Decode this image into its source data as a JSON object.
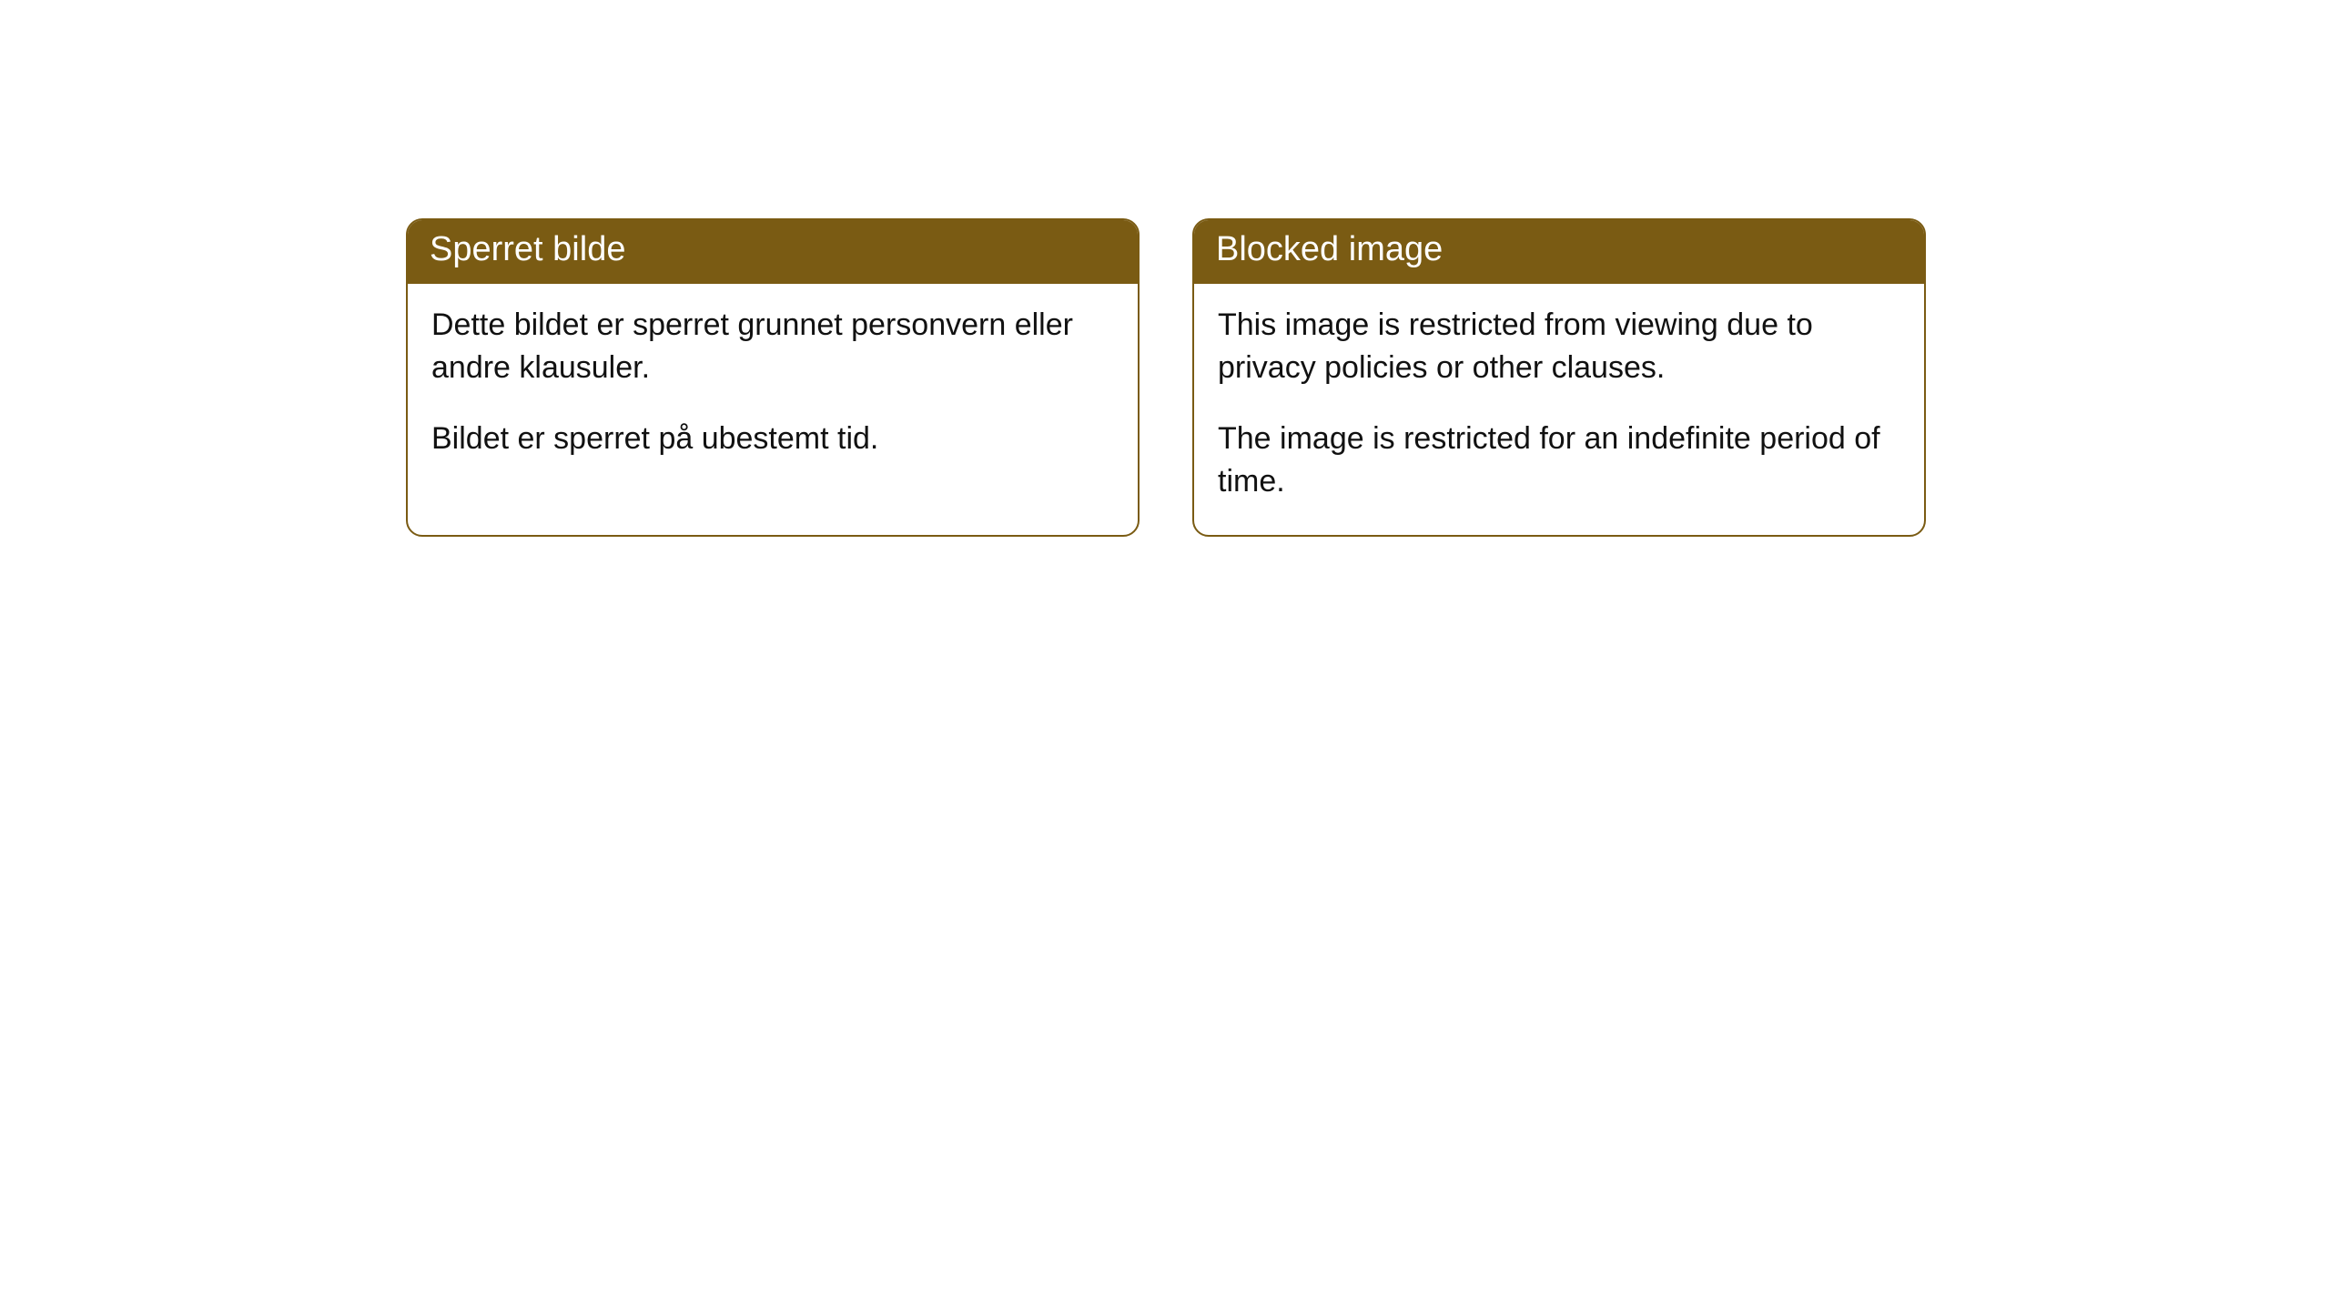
{
  "cards": [
    {
      "title": "Sperret bilde",
      "paragraph1": "Dette bildet er sperret grunnet personvern eller andre klausuler.",
      "paragraph2": "Bildet er sperret på ubestemt tid."
    },
    {
      "title": "Blocked image",
      "paragraph1": "This image is restricted from viewing due to privacy policies or other clauses.",
      "paragraph2": "The image is restricted for an indefinite period of time."
    }
  ],
  "style": {
    "header_background": "#7a5b13",
    "header_text_color": "#ffffff",
    "border_color": "#7a5b13",
    "body_background": "#ffffff",
    "body_text_color": "#111111",
    "border_radius": 18,
    "title_fontsize": 38,
    "body_fontsize": 34
  }
}
